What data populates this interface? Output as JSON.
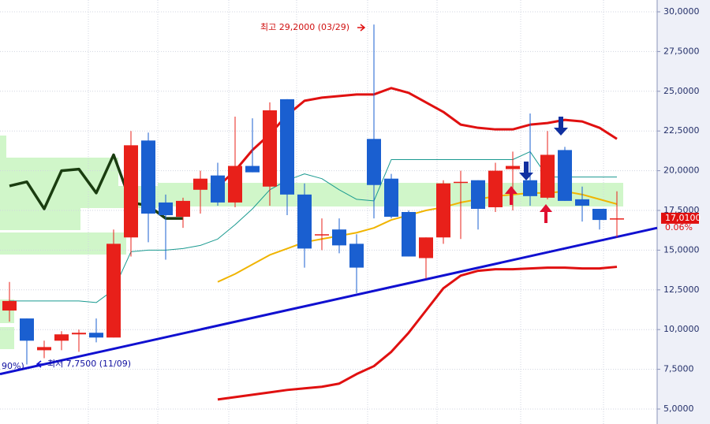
{
  "chart_data": {
    "type": "candlestick",
    "ylim": [
      5000,
      30000
    ],
    "yticks": [
      {
        "value": 5000,
        "label": "5,0000"
      },
      {
        "value": 7500,
        "label": "7,5000"
      },
      {
        "value": 10000,
        "label": "10,0000"
      },
      {
        "value": 12500,
        "label": "12,5000"
      },
      {
        "value": 15000,
        "label": "15,0000"
      },
      {
        "value": 17500,
        "label": "17,5000"
      },
      {
        "value": 20000,
        "label": "20,0000"
      },
      {
        "value": 22500,
        "label": "22,5000"
      },
      {
        "value": 25000,
        "label": "25,0000"
      },
      {
        "value": 27500,
        "label": "27,5000"
      },
      {
        "value": 30000,
        "label": "30,0000"
      }
    ],
    "grid": true,
    "up_color": "#e8201a",
    "down_color": "#1a5fd0",
    "open": [
      11200,
      10700,
      8700,
      9300,
      9700,
      9800,
      9500,
      15800,
      21900,
      18000,
      17100,
      18800,
      19700,
      18000,
      20300,
      19000,
      24500,
      18500,
      16000,
      16300,
      15400,
      22000,
      19500,
      17400,
      14500,
      15800,
      19300,
      19400,
      17700,
      20100,
      19400,
      18300,
      21300,
      18200,
      17600,
      17000
    ],
    "high": [
      13000,
      10700,
      9300,
      9900,
      10000,
      10700,
      16300,
      22500,
      22400,
      18500,
      18300,
      20000,
      20500,
      23400,
      23300,
      24300,
      24500,
      19200,
      17000,
      17000,
      16000,
      29200,
      19800,
      17500,
      15800,
      19400,
      20000,
      19400,
      20500,
      21200,
      23600,
      22500,
      21500,
      19000,
      17600,
      18700
    ],
    "low": [
      10500,
      7800,
      8200,
      8700,
      8600,
      9200,
      9500,
      14600,
      15500,
      14400,
      16400,
      17300,
      17800,
      17700,
      19900,
      17800,
      17200,
      13900,
      15000,
      14800,
      12300,
      17000,
      17000,
      14600,
      13200,
      15400,
      15700,
      16300,
      17400,
      17500,
      17800,
      18200,
      18100,
      16800,
      16300,
      15800
    ],
    "close": [
      11800,
      9300,
      8900,
      9700,
      9800,
      9500,
      15400,
      21600,
      17300,
      17200,
      18100,
      19500,
      18000,
      20300,
      19900,
      23800,
      18500,
      15100,
      16000,
      15300,
      13900,
      19100,
      17100,
      14600,
      15800,
      19200,
      19300,
      17600,
      20000,
      20300,
      18400,
      21000,
      18100,
      17800,
      16900,
      17000
    ],
    "lines": [
      {
        "color": "#e01010",
        "width": 3,
        "values": [
          null,
          null,
          null,
          null,
          null,
          null,
          null,
          null,
          null,
          null,
          null,
          null,
          19000,
          20000,
          21300,
          22300,
          23500,
          24400,
          24600,
          24700,
          24800,
          24800,
          25200,
          24900,
          24300,
          23700,
          22900,
          22700,
          22600,
          22600,
          22900,
          23000,
          23200,
          23100,
          22700,
          22000
        ]
      },
      {
        "color": "#e01010",
        "width": 3,
        "values": [
          null,
          null,
          null,
          null,
          null,
          null,
          null,
          null,
          null,
          null,
          null,
          null,
          5600,
          5750,
          5900,
          6050,
          6200,
          6300,
          6400,
          6600,
          7200,
          7700,
          8600,
          9800,
          11200,
          12600,
          13400,
          13700,
          13800,
          13800,
          13850,
          13900,
          13900,
          13850,
          13850,
          13950
        ]
      },
      {
        "color": "#f0b400",
        "width": 2,
        "values": [
          null,
          null,
          null,
          null,
          null,
          null,
          null,
          null,
          null,
          null,
          null,
          null,
          13000,
          13500,
          14100,
          14700,
          15100,
          15500,
          15700,
          15900,
          16100,
          16400,
          16900,
          17200,
          17500,
          17700,
          18000,
          18200,
          18400,
          18500,
          18600,
          18600,
          18700,
          18500,
          18200,
          17900
        ]
      },
      {
        "color": "#1a9a90",
        "width": 1,
        "values": [
          11800,
          11800,
          11800,
          11800,
          11800,
          11700,
          12500,
          14900,
          15000,
          15000,
          15100,
          15300,
          15700,
          16600,
          17600,
          18800,
          19400,
          19800,
          19500,
          18800,
          18200,
          18100,
          20700,
          20700,
          20700,
          20700,
          20700,
          20700,
          20700,
          20700,
          21200,
          19600,
          19600,
          19600,
          19600,
          19600
        ]
      },
      {
        "color": "#1a3d10",
        "width": 3.5,
        "values": [
          19040,
          19300,
          17600,
          20000,
          20100,
          18600,
          21000,
          18000,
          17800,
          17000,
          17000,
          null,
          null,
          null,
          null,
          null,
          null,
          null,
          null,
          null,
          null,
          null,
          null,
          null,
          null,
          null,
          null,
          null,
          null,
          null,
          null,
          null,
          null,
          null,
          null,
          null
        ]
      }
    ],
    "trendline": {
      "color": "#1010d0",
      "values": [
        7200,
        16400
      ]
    },
    "high_note": "최고 29,2000 (03/29)",
    "low_note": "최저 7,7500 (11/09)",
    "left_note": "90%)",
    "last_price": {
      "value": 17010,
      "label": "17,0100"
    },
    "change": "0.06%"
  }
}
